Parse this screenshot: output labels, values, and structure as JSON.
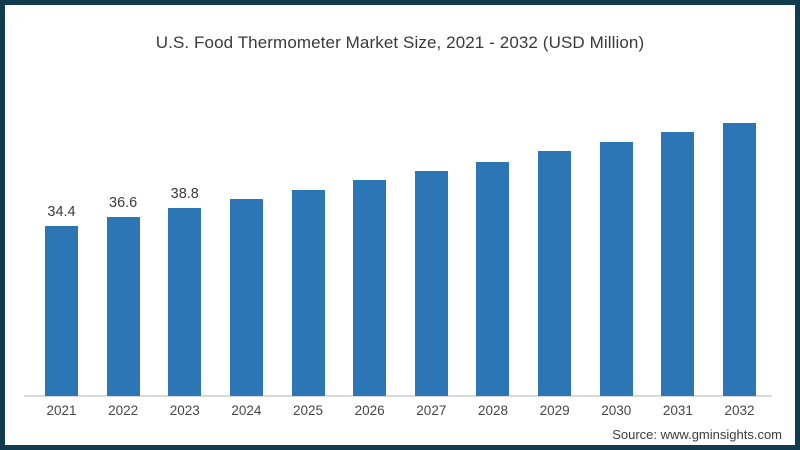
{
  "frame": {
    "border_color": "#123c4d",
    "background_color": "#ffffff"
  },
  "title": "U.S. Food Thermometer Market Size, 2021 - 2032 (USD Million)",
  "source": "Source: www.gminsights.com",
  "chart_data": {
    "type": "bar",
    "title": "U.S. Food Thermometer Market Size, 2021 - 2032 (USD Million)",
    "categories": [
      "2021",
      "2022",
      "2023",
      "2024",
      "2025",
      "2026",
      "2027",
      "2028",
      "2029",
      "2030",
      "2031",
      "2032"
    ],
    "values": [
      34.4,
      36.6,
      38.8,
      41.0,
      43.3,
      45.6,
      48.0,
      50.2,
      52.7,
      54.9,
      57.4,
      59.6
    ],
    "data_labels": [
      "34.4",
      "36.6",
      "38.8",
      "",
      "",
      "",
      "",
      "",
      "",
      "",
      "",
      ""
    ],
    "xlabel": "",
    "ylabel": "",
    "unit": "USD Million",
    "bar_color": "#2d76b5",
    "axis_line_color": "#d9d9d9",
    "grid": false,
    "legend": "none",
    "y_axis_visible": false,
    "baseline_value": -7.4
  }
}
